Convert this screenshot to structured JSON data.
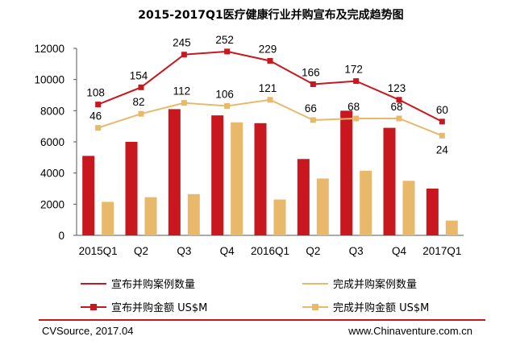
{
  "chart_data": {
    "type": "bar",
    "title": "2015-2017Q1医疗健康行业并购宣布及完成趋势图",
    "categories": [
      "2015Q1",
      "Q2",
      "Q3",
      "Q4",
      "2016Q1",
      "Q2",
      "Q3",
      "Q4",
      "2017Q1"
    ],
    "ylim": [
      0,
      12000
    ],
    "yticks": [
      0,
      2000,
      4000,
      6000,
      8000,
      10000,
      12000
    ],
    "series": [
      {
        "name": "宣布并购案例数量",
        "kind": "line",
        "color": "#c8171e",
        "values": [
          108,
          154,
          245,
          252,
          229,
          166,
          172,
          123,
          60
        ],
        "plot_y": [
          8400,
          9500,
          11600,
          11800,
          11200,
          9700,
          9900,
          8700,
          7300
        ]
      },
      {
        "name": "完成并购案例数量",
        "kind": "line",
        "color": "#e8b96b",
        "values": [
          46,
          82,
          112,
          106,
          121,
          66,
          68,
          68,
          24
        ],
        "plot_y": [
          6900,
          7800,
          8500,
          8300,
          8700,
          7400,
          7500,
          7500,
          6400
        ]
      },
      {
        "name": "宣布并购金额 US$M",
        "kind": "bar",
        "color": "#c8171e",
        "values": [
          5100,
          6000,
          8100,
          7700,
          7200,
          4900,
          8000,
          6900,
          3000
        ]
      },
      {
        "name": "完成并购金额 US$M",
        "kind": "bar",
        "color": "#e8b96b",
        "values": [
          2150,
          2450,
          2650,
          7250,
          2300,
          3650,
          4150,
          3500,
          950
        ]
      }
    ]
  },
  "footer": {
    "source": "CVSource, 2017.04",
    "site": "www.Chinaventure.com.cn",
    "accent_color": "#c8171e"
  }
}
